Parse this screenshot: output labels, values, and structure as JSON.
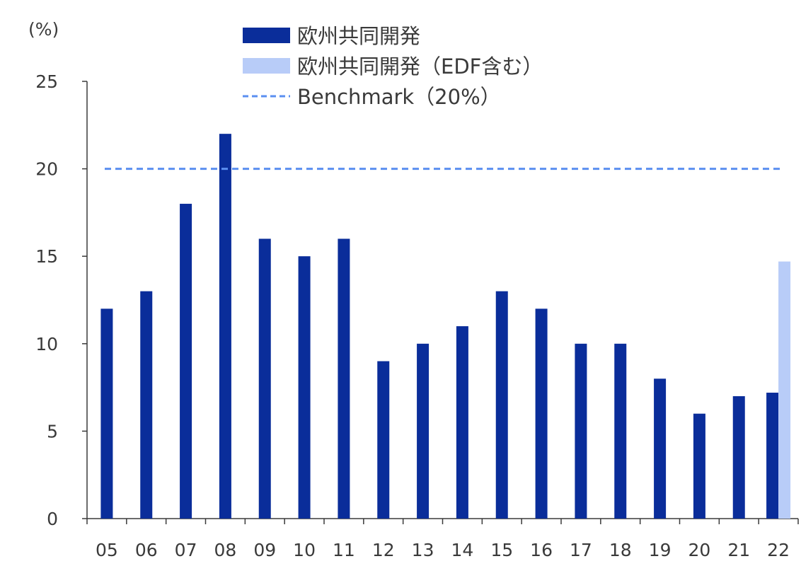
{
  "chart_data": {
    "type": "bar",
    "unit_label": "(%)",
    "categories": [
      "05",
      "06",
      "07",
      "08",
      "09",
      "10",
      "11",
      "12",
      "13",
      "14",
      "15",
      "16",
      "17",
      "18",
      "19",
      "20",
      "21",
      "22"
    ],
    "series": [
      {
        "name": "欧州共同開発",
        "color": "#0a2d9a",
        "values": [
          12,
          13,
          18,
          22,
          16,
          15,
          16,
          9,
          10,
          11,
          13,
          12,
          10,
          10,
          8,
          6,
          7,
          7.2
        ]
      },
      {
        "name": "欧州共同開発（EDF含む）",
        "color": "#b8ccf8",
        "values": [
          null,
          null,
          null,
          null,
          null,
          null,
          null,
          null,
          null,
          null,
          null,
          null,
          null,
          null,
          null,
          null,
          null,
          14.7
        ]
      }
    ],
    "benchmark": {
      "name": "Benchmark（20%）",
      "value": 20,
      "color": "#5b8ff0",
      "style": "dashed"
    },
    "ylim": [
      0,
      25
    ],
    "yticks": [
      0,
      5,
      10,
      15,
      20,
      25
    ],
    "xlabel": "",
    "ylabel": "(%)",
    "legend_position": "top-center"
  }
}
